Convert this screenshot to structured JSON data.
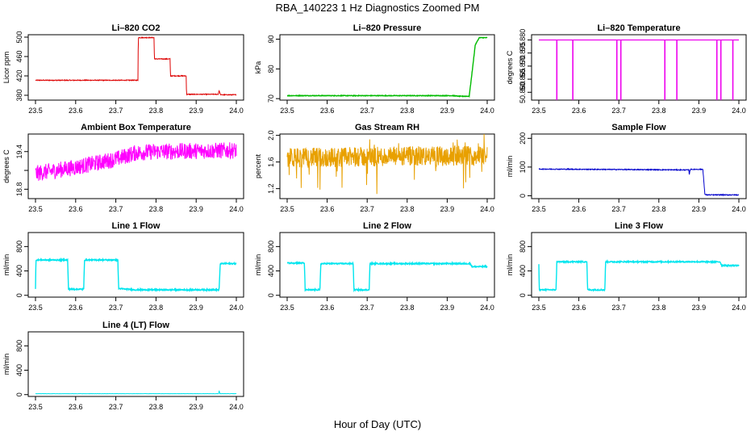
{
  "figure": {
    "title": "RBA_140223  1 Hz Diagnostics Zoomed PM",
    "xlabel": "Hour of Day (UTC)"
  },
  "chart_data": [
    {
      "id": "co2",
      "type": "line",
      "title": "Li–820 CO2",
      "ylabel": "Licor ppm",
      "color": "#dd0000",
      "noise": 0.8,
      "xlim": [
        23.5,
        24.0
      ],
      "ylim": [
        370,
        505
      ],
      "yticks": [
        380,
        420,
        460,
        500
      ],
      "ytick_labels": [
        "380",
        "420",
        "460",
        "500"
      ],
      "series": [
        {
          "name": "CO2",
          "x": [
            23.5,
            23.755,
            23.756,
            23.795,
            23.796,
            23.835,
            23.836,
            23.875,
            23.876,
            23.955,
            23.957,
            23.96,
            23.962,
            24.0
          ],
          "y": [
            411,
            411,
            499,
            499,
            455,
            455,
            420,
            420,
            382,
            382,
            390,
            382,
            381,
            381
          ]
        }
      ]
    },
    {
      "id": "pressure",
      "type": "line",
      "title": "Li–820 Pressure",
      "ylabel": "kPa",
      "color": "#00bb00",
      "noise": 0.1,
      "xlim": [
        23.5,
        24.0
      ],
      "ylim": [
        69.5,
        91.5
      ],
      "yticks": [
        70,
        80,
        90
      ],
      "ytick_labels": [
        "70",
        "80",
        "90"
      ],
      "series": [
        {
          "name": "Pressure",
          "x": [
            23.5,
            23.915,
            23.93,
            23.955,
            23.965,
            23.97,
            23.98,
            24.0
          ],
          "y": [
            71,
            71,
            70.8,
            70.8,
            82,
            88,
            90.5,
            90.5
          ]
        }
      ]
    },
    {
      "id": "licor-temp",
      "type": "line",
      "title": "Li–820 Temperature",
      "ylabel": "degrees C",
      "color": "#ee00ee",
      "noise": 0,
      "xlim": [
        23.5,
        24.0
      ],
      "ylim": [
        50.857,
        50.882
      ],
      "yticks": [
        50.86,
        50.865,
        50.87,
        50.875,
        50.88
      ],
      "ytick_labels": [
        "50.860",
        "50.865",
        "50.870",
        "50.875",
        "50.880"
      ],
      "baseline": 50.88,
      "dips": [
        23.545,
        23.585,
        23.695,
        23.705,
        23.815,
        23.845,
        23.945,
        23.955,
        23.985
      ],
      "dip_to": 50.857,
      "series": []
    },
    {
      "id": "box-temp",
      "type": "line",
      "title": "Ambient Box Temperature",
      "ylabel": "degrees C",
      "color": "#ff00ff",
      "noise": 0.13,
      "xlim": [
        23.5,
        24.0
      ],
      "ylim": [
        18.65,
        19.68
      ],
      "yticks": [
        18.8,
        19.1,
        19.4
      ],
      "ytick_labels": [
        "18.8",
        "",
        "19.4"
      ],
      "series": [
        {
          "name": "Box Temp",
          "x": [
            23.5,
            23.6,
            23.7,
            23.75,
            23.8,
            24.0
          ],
          "y": [
            19.05,
            19.15,
            19.28,
            19.38,
            19.4,
            19.42
          ]
        }
      ]
    },
    {
      "id": "rh",
      "type": "line",
      "title": "Gas Stream RH",
      "ylabel": "percent",
      "color": "#e8a000",
      "noise": 0.15,
      "spikes": true,
      "xlim": [
        23.5,
        24.0
      ],
      "ylim": [
        1.05,
        2.02
      ],
      "yticks": [
        1.2,
        1.6,
        2.0
      ],
      "ytick_labels": [
        "1.2",
        "1.6",
        "2.0"
      ],
      "series": [
        {
          "name": "RH",
          "x": [
            23.5,
            24.0
          ],
          "y": [
            1.66,
            1.7
          ]
        }
      ]
    },
    {
      "id": "sample-flow",
      "type": "line",
      "title": "Sample Flow",
      "ylabel": "ml/min",
      "color": "#0000cc",
      "noise": 1.5,
      "xlim": [
        23.5,
        24.0
      ],
      "ylim": [
        -10,
        215
      ],
      "yticks": [
        0,
        100,
        200
      ],
      "ytick_labels": [
        "0",
        "100",
        "200"
      ],
      "series": [
        {
          "name": "Sample Flow",
          "x": [
            23.5,
            23.875,
            23.876,
            23.878,
            23.88,
            23.91,
            23.915,
            23.92,
            24.0
          ],
          "y": [
            93,
            90,
            72,
            90,
            92,
            92,
            5,
            3,
            3
          ]
        }
      ]
    },
    {
      "id": "line1",
      "type": "line",
      "title": "Line 1 Flow",
      "ylabel": "ml/min",
      "color": "#00e5ee",
      "noise": 10,
      "xlim": [
        23.5,
        24.0
      ],
      "ylim": [
        -30,
        1030
      ],
      "yticks": [
        0,
        400,
        800
      ],
      "ytick_labels": [
        "0",
        "400",
        "800"
      ],
      "series": [
        {
          "name": "Line 1",
          "x": [
            23.5,
            23.501,
            23.58,
            23.582,
            23.62,
            23.622,
            23.705,
            23.707,
            23.75,
            23.957,
            23.96,
            24.0
          ],
          "y": [
            100,
            580,
            580,
            100,
            100,
            580,
            580,
            110,
            90,
            90,
            520,
            520
          ]
        }
      ]
    },
    {
      "id": "line2",
      "type": "line",
      "title": "Line 2 Flow",
      "ylabel": "ml/min",
      "color": "#00e5ee",
      "noise": 10,
      "xlim": [
        23.5,
        24.0
      ],
      "ylim": [
        -30,
        1030
      ],
      "yticks": [
        0,
        400,
        800
      ],
      "ytick_labels": [
        "0",
        "400",
        "800"
      ],
      "series": [
        {
          "name": "Line 2",
          "x": [
            23.5,
            23.543,
            23.545,
            23.582,
            23.584,
            23.665,
            23.667,
            23.705,
            23.707,
            23.958,
            23.962,
            24.0
          ],
          "y": [
            530,
            530,
            90,
            90,
            520,
            520,
            90,
            90,
            520,
            520,
            470,
            470
          ]
        }
      ]
    },
    {
      "id": "line3",
      "type": "line",
      "title": "Line 3 Flow",
      "ylabel": "ml/min",
      "color": "#00e5ee",
      "noise": 10,
      "xlim": [
        23.5,
        24.0
      ],
      "ylim": [
        -30,
        1030
      ],
      "yticks": [
        0,
        400,
        800
      ],
      "ytick_labels": [
        "0",
        "400",
        "800"
      ],
      "series": [
        {
          "name": "Line 3",
          "x": [
            23.5,
            23.501,
            23.502,
            23.543,
            23.545,
            23.62,
            23.622,
            23.665,
            23.667,
            23.953,
            23.957,
            24.0
          ],
          "y": [
            520,
            90,
            90,
            90,
            550,
            550,
            90,
            90,
            550,
            550,
            490,
            490
          ]
        }
      ]
    },
    {
      "id": "line4",
      "type": "line",
      "title": "Line 4 (LT) Flow",
      "ylabel": "ml/min",
      "color": "#00e5ee",
      "noise": 2,
      "xlim": [
        23.5,
        24.0
      ],
      "ylim": [
        -30,
        1030
      ],
      "yticks": [
        0,
        400,
        800
      ],
      "ytick_labels": [
        "0",
        "400",
        "800"
      ],
      "series": [
        {
          "name": "Line 4",
          "x": [
            23.5,
            23.956,
            23.957,
            23.959,
            24.0
          ],
          "y": [
            15,
            15,
            70,
            15,
            15
          ]
        }
      ]
    }
  ],
  "xaxis": {
    "ticks": [
      23.5,
      23.6,
      23.7,
      23.8,
      23.9,
      24.0
    ],
    "tick_labels": [
      "23.5",
      "23.6",
      "23.7",
      "23.8",
      "23.9",
      "24.0"
    ]
  }
}
